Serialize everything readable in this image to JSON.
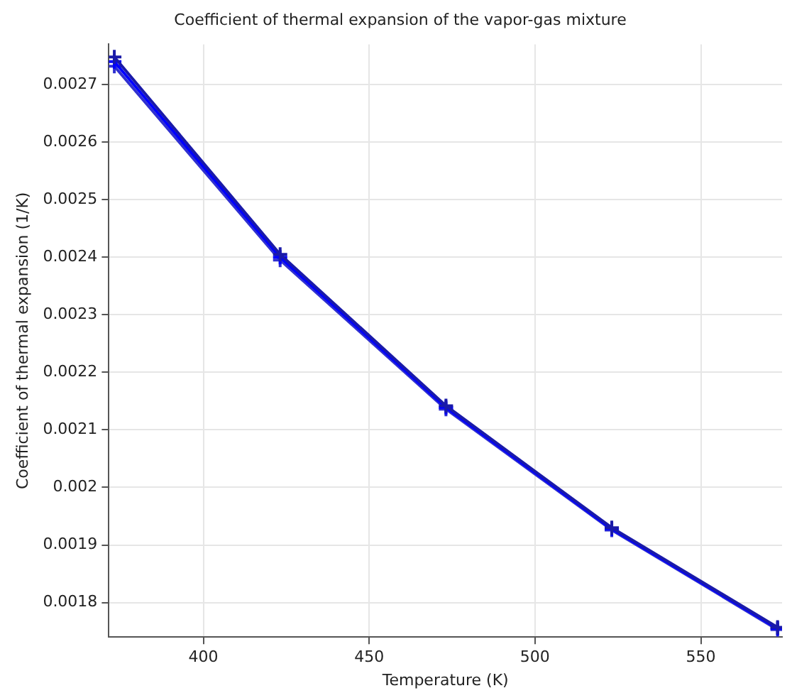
{
  "chart_data": {
    "type": "line",
    "title": "Coefficient of thermal expansion of the vapor-gas mixture",
    "xlabel": "Temperature (K)",
    "ylabel": "Coefficient of thermal expansion (1/K)",
    "x": [
      373.15,
      423.15,
      473.15,
      523.15,
      573.15
    ],
    "series": [
      {
        "color": "#1a1aa8",
        "values": [
          0.002748,
          0.002405,
          0.002142,
          0.00193,
          0.001757
        ]
      },
      {
        "color": "#0000ff",
        "values": [
          0.00274,
          0.0024,
          0.002139,
          0.001928,
          0.001755
        ]
      },
      {
        "color": "#3030d0",
        "values": [
          0.002732,
          0.002395,
          0.002136,
          0.001926,
          0.001753
        ]
      }
    ],
    "xlim": [
      371.5,
      574.5
    ],
    "xticks": [
      400,
      450,
      500,
      550
    ],
    "ylim": [
      0.00174,
      0.00277
    ],
    "yticks": [
      0.0018,
      0.0019,
      0.002,
      0.0021,
      0.0022,
      0.0023,
      0.0024,
      0.0025,
      0.0026,
      0.0027
    ],
    "grid": true,
    "legend": false,
    "marker": "cross",
    "line_style": "solid"
  }
}
